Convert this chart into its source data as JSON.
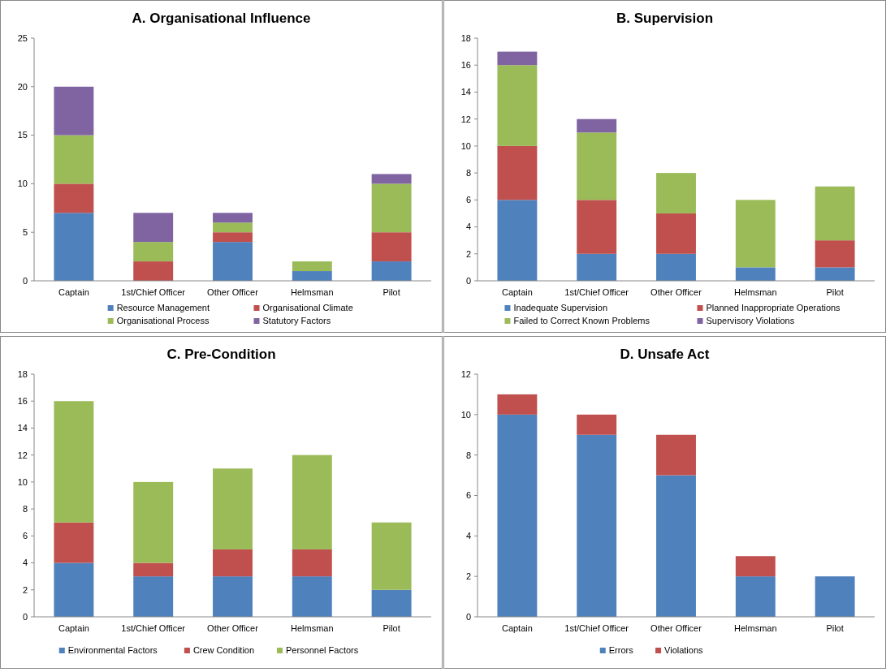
{
  "chart_data": [
    {
      "type": "bar",
      "title": "A. Organisational Influence",
      "stacked": true,
      "categories": [
        "Captain",
        "1st/Chief Officer",
        "Other Officer",
        "Helmsman",
        "Pilot"
      ],
      "ylim": [
        0,
        25
      ],
      "yticks": [
        0,
        5,
        10,
        15,
        20,
        25
      ],
      "legend": "bottom",
      "grid": false,
      "series": [
        {
          "name": "Resource Management",
          "color": "#4f81bd",
          "values": [
            7,
            0,
            4,
            1,
            2
          ]
        },
        {
          "name": "Organisational Climate",
          "color": "#c0504d",
          "values": [
            3,
            2,
            1,
            0,
            3
          ]
        },
        {
          "name": "Organisational Process",
          "color": "#9bbb59",
          "values": [
            5,
            2,
            1,
            1,
            5
          ]
        },
        {
          "name": "Statutory Factors",
          "color": "#8064a2",
          "values": [
            5,
            3,
            1,
            0,
            1
          ]
        }
      ]
    },
    {
      "type": "bar",
      "title": "B. Supervision",
      "stacked": true,
      "categories": [
        "Captain",
        "1st/Chief Officer",
        "Other Officer",
        "Helmsman",
        "Pilot"
      ],
      "ylim": [
        0,
        18
      ],
      "yticks": [
        0,
        2,
        4,
        6,
        8,
        10,
        12,
        14,
        16,
        18
      ],
      "legend": "bottom",
      "grid": false,
      "series": [
        {
          "name": "Inadequate Supervision",
          "color": "#4f81bd",
          "values": [
            6,
            2,
            2,
            1,
            1
          ]
        },
        {
          "name": "Planned Inappropriate Operations",
          "color": "#c0504d",
          "values": [
            4,
            4,
            3,
            0,
            2
          ]
        },
        {
          "name": "Failed to Correct Known Problems",
          "color": "#9bbb59",
          "values": [
            6,
            5,
            3,
            5,
            4
          ]
        },
        {
          "name": "Supervisory Violations",
          "color": "#8064a2",
          "values": [
            1,
            1,
            0,
            0,
            0
          ]
        }
      ]
    },
    {
      "type": "bar",
      "title": "C. Pre-Condition",
      "stacked": true,
      "categories": [
        "Captain",
        "1st/Chief Officer",
        "Other Officer",
        "Helmsman",
        "Pilot"
      ],
      "ylim": [
        0,
        18
      ],
      "yticks": [
        0,
        2,
        4,
        6,
        8,
        10,
        12,
        14,
        16,
        18
      ],
      "legend": "bottom",
      "grid": false,
      "series": [
        {
          "name": "Environmental Factors",
          "color": "#4f81bd",
          "values": [
            4,
            3,
            3,
            3,
            2
          ]
        },
        {
          "name": "Crew Condition",
          "color": "#c0504d",
          "values": [
            3,
            1,
            2,
            2,
            0
          ]
        },
        {
          "name": "Personnel Factors",
          "color": "#9bbb59",
          "values": [
            9,
            6,
            6,
            7,
            5
          ]
        }
      ]
    },
    {
      "type": "bar",
      "title": "D. Unsafe Act",
      "stacked": true,
      "categories": [
        "Captain",
        "1st/Chief Officer",
        "Other Officer",
        "Helmsman",
        "Pilot"
      ],
      "ylim": [
        0,
        12
      ],
      "yticks": [
        0,
        2,
        4,
        6,
        8,
        10,
        12
      ],
      "legend": "bottom",
      "grid": false,
      "series": [
        {
          "name": "Errors",
          "color": "#4f81bd",
          "values": [
            10,
            9,
            7,
            2,
            2
          ]
        },
        {
          "name": "Violations",
          "color": "#c0504d",
          "values": [
            1,
            1,
            2,
            1,
            0
          ]
        }
      ]
    }
  ]
}
